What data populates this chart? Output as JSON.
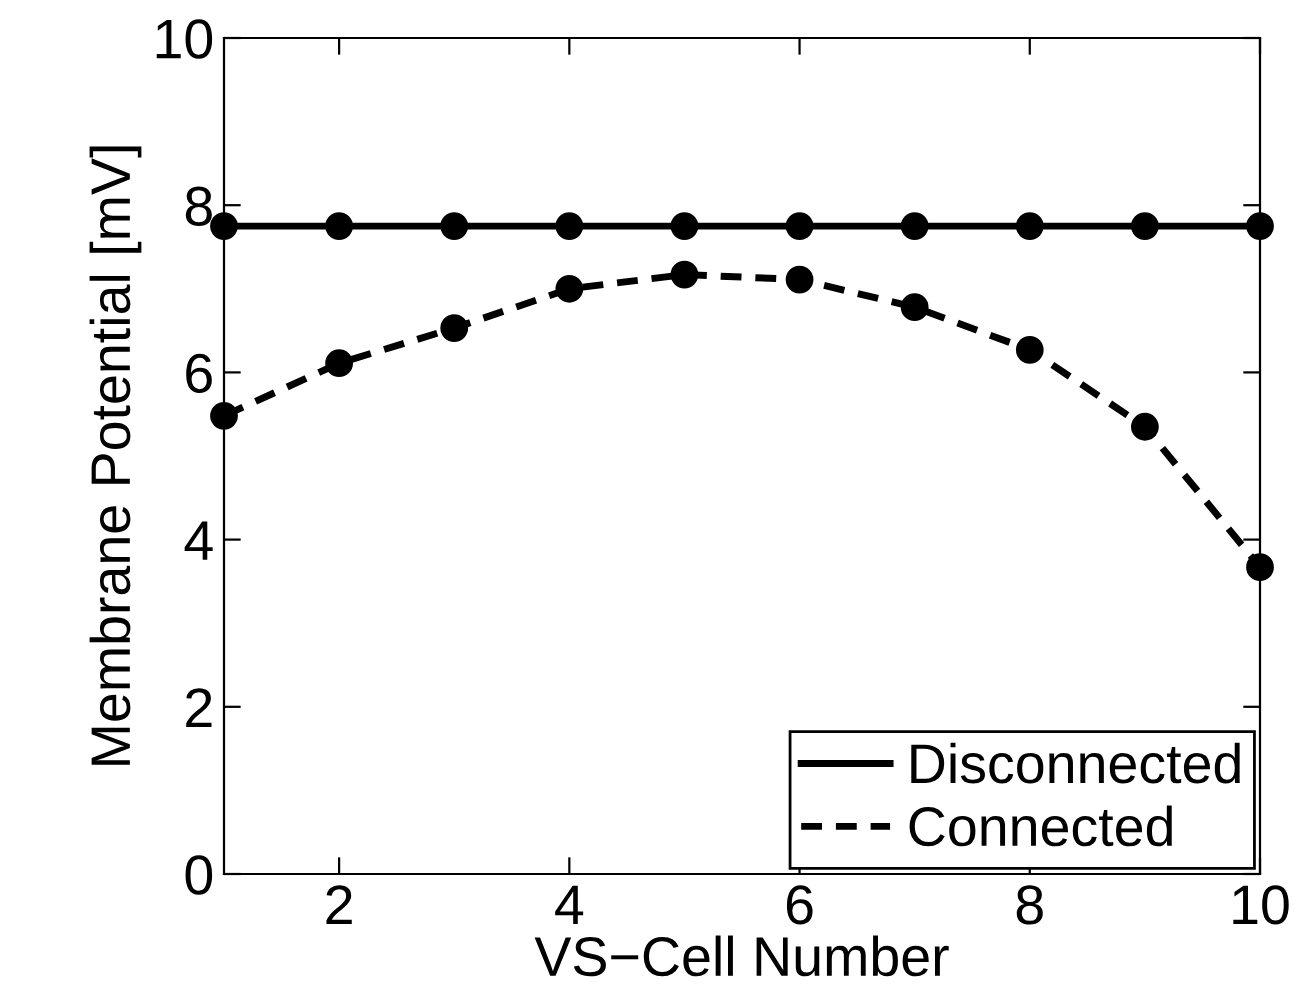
{
  "chart_data": {
    "type": "line",
    "xlabel": "VS−Cell Number",
    "ylabel": "Membrane Potential [mV]",
    "x": [
      1,
      2,
      3,
      4,
      5,
      6,
      7,
      8,
      9,
      10
    ],
    "series": [
      {
        "name": "Disconnected",
        "color": "#000000",
        "line_style": "solid",
        "values": [
          7.75,
          7.75,
          7.75,
          7.75,
          7.75,
          7.75,
          7.75,
          7.75,
          7.75,
          7.75
        ]
      },
      {
        "name": "Connected",
        "color": "#000000",
        "line_style": "dashed",
        "values": [
          5.48,
          6.11,
          6.53,
          7.0,
          7.17,
          7.11,
          6.78,
          6.27,
          5.35,
          3.67
        ]
      }
    ],
    "marker": "circle",
    "xlim": [
      1,
      10
    ],
    "xticks": [
      2,
      4,
      6,
      8,
      10
    ],
    "ylim": [
      0,
      10
    ],
    "yticks": [
      0,
      2,
      4,
      6,
      8,
      10
    ],
    "grid": false,
    "legend": "bottom right"
  }
}
